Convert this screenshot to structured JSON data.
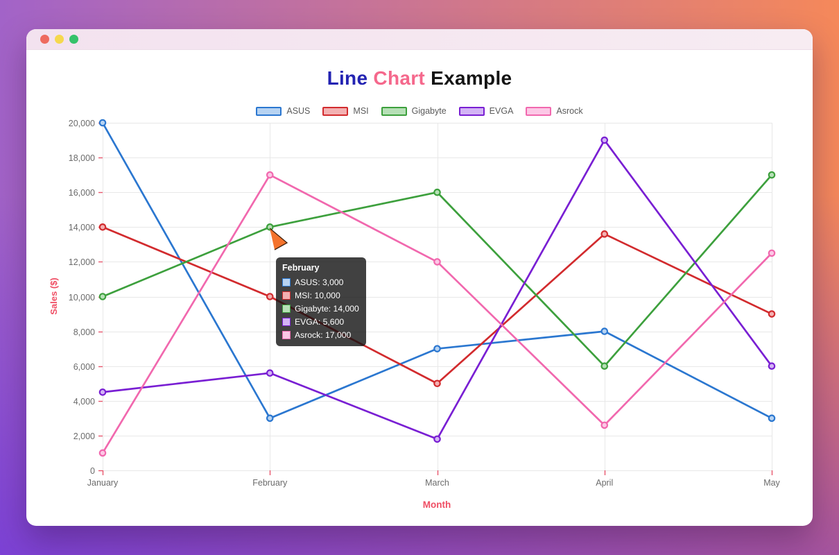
{
  "window": {
    "titlebar_buttons": [
      {
        "name": "close",
        "color": "#ee6a5f"
      },
      {
        "name": "minimize",
        "color": "#f5d84e"
      },
      {
        "name": "maximize",
        "color": "#35c26a"
      }
    ]
  },
  "title": {
    "segments": [
      {
        "text": "Line",
        "color": "#2323b2"
      },
      {
        "text": "Chart",
        "color": "#f5688c"
      },
      {
        "text": "Example",
        "color": "#141414"
      }
    ]
  },
  "chart_data": {
    "type": "line",
    "title": "Line Chart Example",
    "categories": [
      "January",
      "February",
      "March",
      "April",
      "May"
    ],
    "series": [
      {
        "name": "ASUS",
        "color": "#2b77d0",
        "fill": "#b7d3f2",
        "values": [
          20000,
          3000,
          7000,
          8000,
          3000
        ]
      },
      {
        "name": "MSI",
        "color": "#d22b2e",
        "fill": "#f3b1b2",
        "values": [
          14000,
          10000,
          5000,
          13600,
          9000
        ]
      },
      {
        "name": "Gigabyte",
        "color": "#3da03d",
        "fill": "#b7e0b7",
        "values": [
          10000,
          14000,
          16000,
          6000,
          17000
        ]
      },
      {
        "name": "EVGA",
        "color": "#791fd3",
        "fill": "#d3b4f5",
        "values": [
          4500,
          5600,
          1800,
          19000,
          6000
        ]
      },
      {
        "name": "Asrock",
        "color": "#f168ae",
        "fill": "#fcc8e6",
        "values": [
          1000,
          17000,
          12000,
          2600,
          12500
        ]
      }
    ],
    "xlabel": "Month",
    "ylabel": "Sales ($)",
    "ylim": [
      0,
      20000
    ],
    "ytick_step": 2000,
    "grid": true,
    "legend_position": "top",
    "colors": {
      "axis_title": "#ef4e64",
      "tick": "#e8566c",
      "tick_label": "#6b6b6b",
      "grid": "#e8e8e8"
    }
  },
  "tooltip": {
    "title": "February",
    "rows": [
      {
        "series": "ASUS",
        "value": "3,000"
      },
      {
        "series": "MSI",
        "value": "10,000"
      },
      {
        "series": "Gigabyte",
        "value": "14,000"
      },
      {
        "series": "EVGA",
        "value": "5,600"
      },
      {
        "series": "Asrock",
        "value": "17,000"
      }
    ]
  },
  "cursor": {
    "type": "pointer-arrow",
    "color": "#f4732c"
  }
}
